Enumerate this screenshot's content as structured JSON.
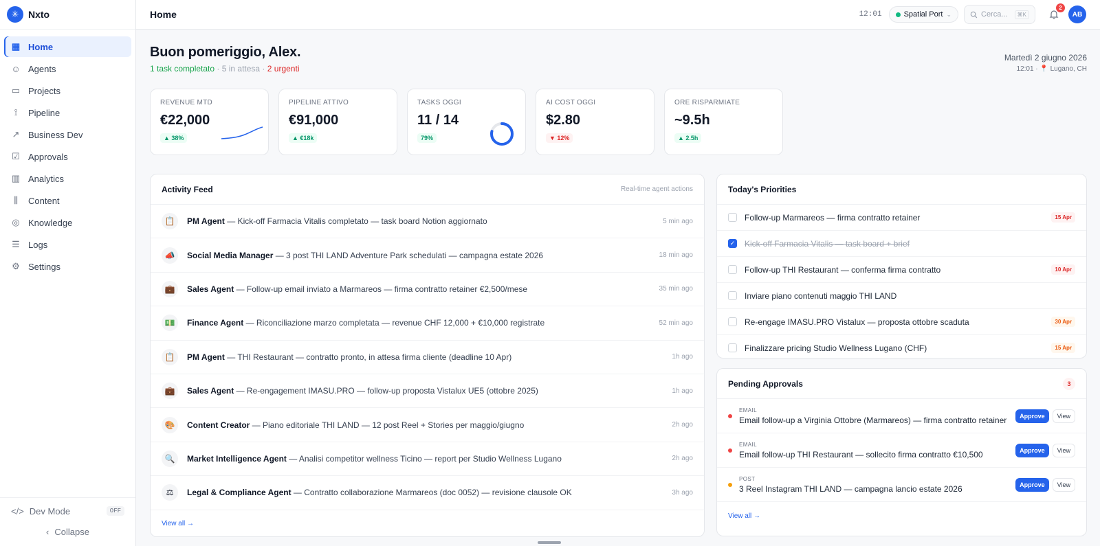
{
  "app": {
    "name": "Nxto"
  },
  "sidebar": {
    "items": [
      {
        "label": "Home",
        "icon": "grid-icon",
        "glyph": "▦",
        "active": true
      },
      {
        "label": "Agents",
        "icon": "robot-icon",
        "glyph": "☺"
      },
      {
        "label": "Projects",
        "icon": "folder-icon",
        "glyph": "▭"
      },
      {
        "label": "Pipeline",
        "icon": "pipeline-icon",
        "glyph": "⟟"
      },
      {
        "label": "Business Dev",
        "icon": "trend-icon",
        "glyph": "↗"
      },
      {
        "label": "Approvals",
        "icon": "check-square-icon",
        "glyph": "☑"
      },
      {
        "label": "Analytics",
        "icon": "bar-chart-icon",
        "glyph": "▥"
      },
      {
        "label": "Content",
        "icon": "content-icon",
        "glyph": "⫼"
      },
      {
        "label": "Knowledge",
        "icon": "globe-icon",
        "glyph": "◎"
      },
      {
        "label": "Logs",
        "icon": "logs-icon",
        "glyph": "☰"
      },
      {
        "label": "Settings",
        "icon": "gear-icon",
        "glyph": "⚙"
      }
    ],
    "dev_mode": {
      "label": "Dev Mode",
      "state": "OFF"
    },
    "collapse": "Collapse"
  },
  "topbar": {
    "title": "Home",
    "time": "12:01",
    "workspace": "Spatial Port",
    "search_placeholder": "Cerca...",
    "search_shortcut": "⌘K",
    "notifications": "2",
    "avatar": "AB"
  },
  "greeting": {
    "title": "Buon pomeriggio, Alex.",
    "completed": "1 task completato",
    "sep1": " · ",
    "waiting": "5 in attesa",
    "sep2": " · ",
    "urgent": "2 urgenti",
    "date": "Martedì 2 giugno 2026",
    "time_location": "12:01 · 📍 Lugano, CH"
  },
  "kpis": [
    {
      "label": "REVENUE MTD",
      "value": "€22,000",
      "delta": "▲ 38%",
      "trend": "up"
    },
    {
      "label": "PIPELINE ATTIVO",
      "value": "€91,000",
      "delta": "▲ €18k",
      "trend": "up"
    },
    {
      "label": "TASKS OGGI",
      "value": "11 / 14",
      "delta": "79%",
      "trend": "up",
      "progress": 0.79
    },
    {
      "label": "AI COST OGGI",
      "value": "$2.80",
      "delta": "▼ 12%",
      "trend": "down"
    },
    {
      "label": "ORE RISPARMIATE",
      "value": "~9.5h",
      "delta": "▲ 2.5h",
      "trend": "up"
    }
  ],
  "activity": {
    "title": "Activity Feed",
    "hint": "Real-time agent actions",
    "view_all": "View all →",
    "items": [
      {
        "icon": "📋",
        "agent": "PM Agent",
        "text": " — Kick-off Farmacia Vitalis completato — task board Notion aggiornato",
        "time": "5 min ago"
      },
      {
        "icon": "📣",
        "agent": "Social Media Manager",
        "text": " — 3 post THI LAND Adventure Park schedulati — campagna estate 2026",
        "time": "18 min ago"
      },
      {
        "icon": "💼",
        "agent": "Sales Agent",
        "text": " — Follow-up email inviato a Marmareos — firma contratto retainer €2,500/mese",
        "time": "35 min ago"
      },
      {
        "icon": "💵",
        "agent": "Finance Agent",
        "text": " — Riconciliazione marzo completata — revenue CHF 12,000 + €10,000 registrate",
        "time": "52 min ago"
      },
      {
        "icon": "📋",
        "agent": "PM Agent",
        "text": " — THI Restaurant — contratto pronto, in attesa firma cliente (deadline 10 Apr)",
        "time": "1h ago"
      },
      {
        "icon": "💼",
        "agent": "Sales Agent",
        "text": " — Re-engagement IMASU.PRO — follow-up proposta Vistalux UE5 (ottobre 2025)",
        "time": "1h ago"
      },
      {
        "icon": "🎨",
        "agent": "Content Creator",
        "text": " — Piano editoriale THI LAND — 12 post Reel + Stories per maggio/giugno",
        "time": "2h ago"
      },
      {
        "icon": "🔍",
        "agent": "Market Intelligence Agent",
        "text": " — Analisi competitor wellness Ticino — report per Studio Wellness Lugano",
        "time": "2h ago"
      },
      {
        "icon": "⚖",
        "agent": "Legal & Compliance Agent",
        "text": " — Contratto collaborazione Marmareos (doc 0052) — revisione clausole OK",
        "time": "3h ago"
      }
    ]
  },
  "priorities": {
    "title": "Today's Priorities",
    "items": [
      {
        "text": "Follow-up Marmareos — firma contratto retainer",
        "due": "15 Apr",
        "done": false,
        "level": "red"
      },
      {
        "text": "Kick-off Farmacia Vitalis — task board + brief",
        "due": "",
        "done": true,
        "level": ""
      },
      {
        "text": "Follow-up THI Restaurant — conferma firma contratto",
        "due": "10 Apr",
        "done": false,
        "level": "red"
      },
      {
        "text": "Inviare piano contenuti maggio THI LAND",
        "due": "",
        "done": false,
        "level": ""
      },
      {
        "text": "Re-engage IMASU.PRO Vistalux — proposta ottobre scaduta",
        "due": "30 Apr",
        "done": false,
        "level": "orange"
      },
      {
        "text": "Finalizzare pricing Studio Wellness Lugano (CHF)",
        "due": "15 Apr",
        "done": false,
        "level": "orange"
      }
    ]
  },
  "approvals": {
    "title": "Pending Approvals",
    "count": "3",
    "view_all": "View all →",
    "approve_label": "Approve",
    "view_label": "View",
    "items": [
      {
        "type": "EMAIL",
        "text": "Email follow-up a Virginia Ottobre (Marmareos) — firma contratto retainer",
        "priority": "#ef4444"
      },
      {
        "type": "EMAIL",
        "text": "Email follow-up THI Restaurant — sollecito firma contratto €10,500",
        "priority": "#ef4444"
      },
      {
        "type": "POST",
        "text": "3 Reel Instagram THI LAND — campagna lancio estate 2026",
        "priority": "#f59e0b"
      }
    ]
  },
  "colors": {
    "accent": "#2563eb",
    "success": "#16a34a",
    "danger": "#dc2626",
    "warning": "#f59e0b"
  }
}
